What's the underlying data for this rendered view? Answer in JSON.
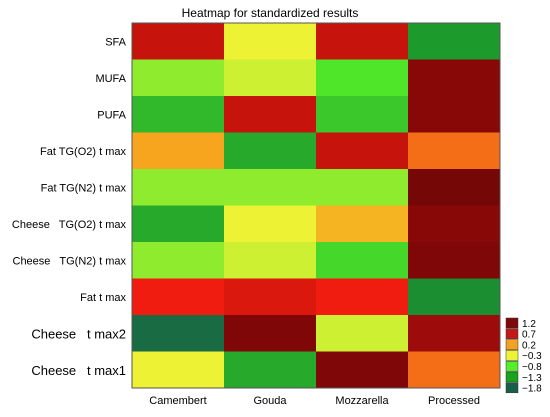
{
  "chart_data": {
    "type": "heatmap",
    "title": "Heatmap for standardized results",
    "columns": [
      "Camembert",
      "Gouda",
      "Mozzarella",
      "Processed"
    ],
    "rows": [
      "SFA",
      "MUFA",
      "PUFA",
      "Fat TG(O2) t max",
      "Fat TG(N2) t max",
      "Cheese   TG(O2) t max",
      "Cheese   TG(N2) t max",
      "Fat t max",
      "Cheese   t max2",
      "Cheese   t max1"
    ],
    "values": [
      [
        0.9,
        -0.3,
        0.9,
        -1.3
      ],
      [
        -0.6,
        -0.4,
        -0.8,
        1.2
      ],
      [
        -1.1,
        0.9,
        -1.0,
        1.2
      ],
      [
        0.2,
        -1.2,
        0.9,
        0.4
      ],
      [
        -0.6,
        -0.6,
        -0.6,
        1.4
      ],
      [
        -1.2,
        -0.3,
        0.1,
        1.2
      ],
      [
        -0.6,
        -0.4,
        -0.9,
        1.3
      ],
      [
        0.7,
        0.8,
        0.7,
        -1.4
      ],
      [
        -1.7,
        1.3,
        -0.4,
        1.1
      ],
      [
        -0.3,
        -1.2,
        1.3,
        0.4
      ]
    ],
    "legend": {
      "labels": [
        "1.2",
        "0.7",
        "0.2",
        "−0.3",
        "−0.8",
        "−1.3",
        "−1.8"
      ],
      "colors": [
        "#7d0a0a",
        "#c41818",
        "#f4a020",
        "#eef234",
        "#56ee28",
        "#1aa41e",
        "#175f49"
      ]
    },
    "colormap": [
      {
        "v": -1.8,
        "color": "#175f49"
      },
      {
        "v": -1.3,
        "color": "#1d9a2c"
      },
      {
        "v": -0.8,
        "color": "#4fe62a"
      },
      {
        "v": -0.3,
        "color": "#eef234"
      },
      {
        "v": 0.2,
        "color": "#f7a51e"
      },
      {
        "v": 0.7,
        "color": "#f01c10"
      },
      {
        "v": 1.2,
        "color": "#880808"
      },
      {
        "v": 1.5,
        "color": "#6c0606"
      }
    ],
    "grid": false,
    "legend_position": "right"
  }
}
